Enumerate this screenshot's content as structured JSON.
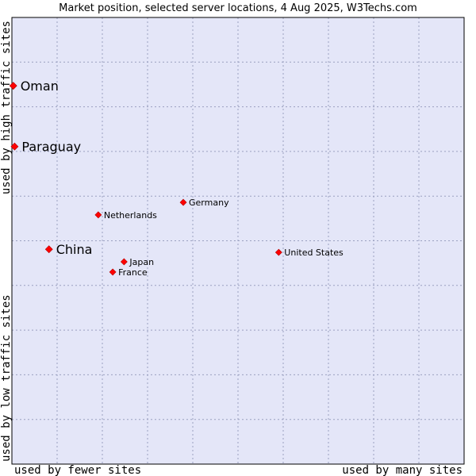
{
  "chart_data": {
    "type": "scatter",
    "title": "Market position, selected server locations, 4 Aug 2025, W3Techs.com",
    "xlabel_left": "used by fewer sites",
    "xlabel_right": "used by many sites",
    "ylabel_bottom": "used by low traffic sites",
    "ylabel_top": "used by high traffic sites",
    "xlim": [
      0,
      100
    ],
    "ylim": [
      0,
      100
    ],
    "grid": true,
    "colors": {
      "plot_bg": "#e4e6f8",
      "grid": "#9aa0c0",
      "marker": "#ff0000",
      "marker_stroke": "#b00000"
    },
    "points": [
      {
        "label": "Oman",
        "x": 0.3,
        "y": 84.7,
        "size": "large"
      },
      {
        "label": "Paraguay",
        "x": 0.6,
        "y": 71.1,
        "size": "large"
      },
      {
        "label": "Germany",
        "x": 37.9,
        "y": 58.6,
        "size": "small"
      },
      {
        "label": "Netherlands",
        "x": 19.1,
        "y": 55.8,
        "size": "small"
      },
      {
        "label": "China",
        "x": 8.2,
        "y": 48.1,
        "size": "large"
      },
      {
        "label": "United States",
        "x": 59.0,
        "y": 47.4,
        "size": "small"
      },
      {
        "label": "Japan",
        "x": 24.8,
        "y": 45.3,
        "size": "small"
      },
      {
        "label": "France",
        "x": 22.3,
        "y": 43.0,
        "size": "small"
      }
    ]
  }
}
